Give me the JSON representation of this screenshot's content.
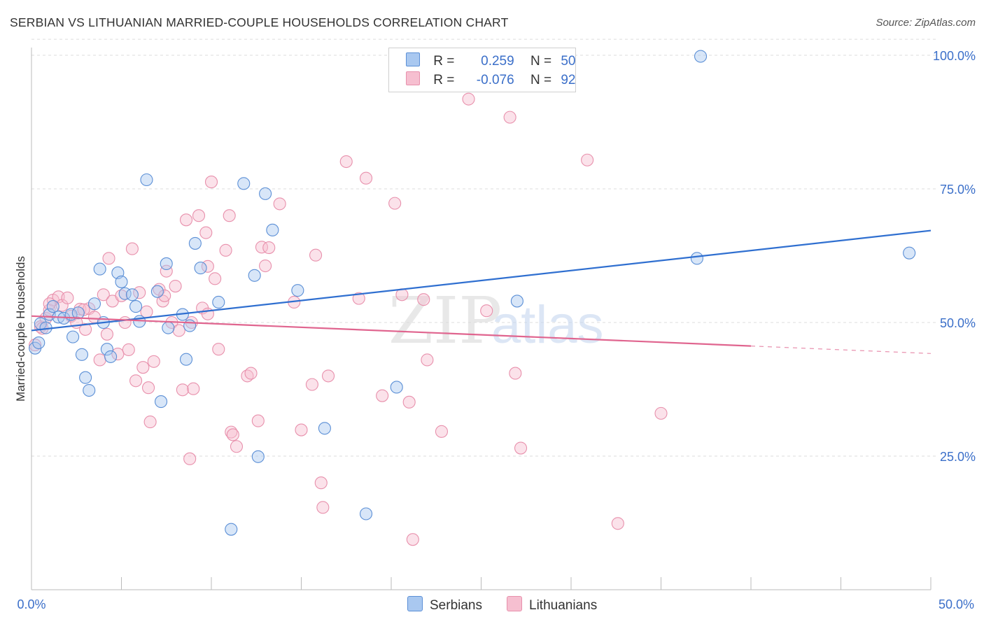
{
  "title": "SERBIAN VS LITHUANIAN MARRIED-COUPLE HOUSEHOLDS CORRELATION CHART",
  "source": "Source: ZipAtlas.com",
  "watermark": {
    "part1": "ZIP",
    "part2": "atlas"
  },
  "legend": {
    "rows": [
      {
        "r_label": "R =",
        "r_value": "0.259",
        "n_label": "N =",
        "n_value": "50"
      },
      {
        "r_label": "R =",
        "r_value": "-0.076",
        "n_label": "N =",
        "n_value": "92"
      }
    ]
  },
  "colors": {
    "serbians_fill": "#a9c8f0",
    "serbians_stroke": "#5b8fd6",
    "serbians_line": "#2f6fd0",
    "lithuanians_fill": "#f6bfd0",
    "lithuanians_stroke": "#e890ac",
    "lithuanians_line": "#e0658f",
    "axis_label": "#3b6fc9",
    "grid": "#dddddd"
  },
  "chart_data": {
    "type": "scatter",
    "title": "SERBIAN VS LITHUANIAN MARRIED-COUPLE HOUSEHOLDS CORRELATION CHART",
    "xlabel": "",
    "ylabel": "Married-couple Households",
    "xlim": [
      0,
      50
    ],
    "ylim": [
      0,
      103
    ],
    "x_tick_labels": [
      "0.0%",
      "50.0%"
    ],
    "y_ticks": [
      25,
      50,
      75,
      100
    ],
    "y_tick_labels": [
      "25.0%",
      "50.0%",
      "75.0%",
      "100.0%"
    ],
    "grid": true,
    "series": [
      {
        "name": "Serbians",
        "r": 0.259,
        "n": 50,
        "trend": {
          "x": [
            0,
            50
          ],
          "y": [
            48.5,
            67.2
          ],
          "dashed_from": null
        },
        "points": [
          [
            0.2,
            45.2
          ],
          [
            0.5,
            49.8
          ],
          [
            0.8,
            49.0
          ],
          [
            1.0,
            51.5
          ],
          [
            1.2,
            53.0
          ],
          [
            1.5,
            51.0
          ],
          [
            1.8,
            50.8
          ],
          [
            2.2,
            51.5
          ],
          [
            2.3,
            47.3
          ],
          [
            2.8,
            44.0
          ],
          [
            3.0,
            39.7
          ],
          [
            3.2,
            37.3
          ],
          [
            3.5,
            53.5
          ],
          [
            3.8,
            60.0
          ],
          [
            4.0,
            50.0
          ],
          [
            4.2,
            45.0
          ],
          [
            4.4,
            43.6
          ],
          [
            4.8,
            59.3
          ],
          [
            5.0,
            57.6
          ],
          [
            5.2,
            55.4
          ],
          [
            5.6,
            55.2
          ],
          [
            5.8,
            53.0
          ],
          [
            6.0,
            50.2
          ],
          [
            6.4,
            76.7
          ],
          [
            7.0,
            55.8
          ],
          [
            7.2,
            35.2
          ],
          [
            7.5,
            61.0
          ],
          [
            7.6,
            49.0
          ],
          [
            8.4,
            51.5
          ],
          [
            8.6,
            43.1
          ],
          [
            8.8,
            49.4
          ],
          [
            9.1,
            64.8
          ],
          [
            9.4,
            60.2
          ],
          [
            10.4,
            53.8
          ],
          [
            11.8,
            76.0
          ],
          [
            12.4,
            58.8
          ],
          [
            12.6,
            24.9
          ],
          [
            13.0,
            74.1
          ],
          [
            13.4,
            67.3
          ],
          [
            14.8,
            56.0
          ],
          [
            16.3,
            30.2
          ],
          [
            18.6,
            14.2
          ],
          [
            20.3,
            37.9
          ],
          [
            27.0,
            54.0
          ],
          [
            37.0,
            62.0
          ],
          [
            37.2,
            99.8
          ],
          [
            48.8,
            63.0
          ],
          [
            11.1,
            11.3
          ],
          [
            0.4,
            46.2
          ],
          [
            2.6,
            51.8
          ]
        ]
      },
      {
        "name": "Lithuanians",
        "r": -0.076,
        "n": 92,
        "trend": {
          "x": [
            0,
            50
          ],
          "y": [
            51.2,
            44.2
          ],
          "dashed_from": 40
        },
        "points": [
          [
            0.2,
            45.8
          ],
          [
            0.5,
            49.2
          ],
          [
            0.8,
            50.8
          ],
          [
            1.0,
            52.3
          ],
          [
            1.2,
            54.2
          ],
          [
            1.5,
            54.8
          ],
          [
            1.7,
            53.2
          ],
          [
            2.0,
            54.6
          ],
          [
            2.2,
            51.2
          ],
          [
            2.5,
            50.0
          ],
          [
            2.7,
            52.5
          ],
          [
            3.0,
            48.7
          ],
          [
            3.2,
            52.6
          ],
          [
            3.5,
            51.0
          ],
          [
            3.8,
            43.0
          ],
          [
            4.0,
            55.2
          ],
          [
            4.2,
            47.8
          ],
          [
            4.3,
            62.0
          ],
          [
            4.5,
            54.0
          ],
          [
            4.8,
            44.1
          ],
          [
            5.0,
            55.0
          ],
          [
            5.2,
            50.0
          ],
          [
            5.4,
            44.9
          ],
          [
            5.6,
            63.8
          ],
          [
            5.8,
            39.1
          ],
          [
            6.0,
            55.6
          ],
          [
            6.2,
            41.6
          ],
          [
            6.5,
            37.8
          ],
          [
            6.6,
            31.4
          ],
          [
            6.8,
            42.7
          ],
          [
            7.1,
            56.2
          ],
          [
            7.3,
            54.0
          ],
          [
            7.4,
            55.0
          ],
          [
            7.5,
            59.6
          ],
          [
            7.8,
            50.0
          ],
          [
            8.0,
            56.8
          ],
          [
            8.2,
            48.5
          ],
          [
            8.4,
            37.4
          ],
          [
            8.6,
            69.2
          ],
          [
            8.8,
            24.5
          ],
          [
            8.9,
            50.0
          ],
          [
            9.0,
            37.6
          ],
          [
            9.3,
            70.0
          ],
          [
            9.5,
            52.7
          ],
          [
            9.7,
            66.8
          ],
          [
            9.8,
            60.5
          ],
          [
            10.0,
            76.3
          ],
          [
            10.2,
            58.2
          ],
          [
            10.4,
            45.0
          ],
          [
            10.8,
            63.5
          ],
          [
            11.0,
            70.0
          ],
          [
            11.1,
            29.5
          ],
          [
            11.2,
            29.0
          ],
          [
            11.4,
            26.8
          ],
          [
            12.0,
            40.0
          ],
          [
            12.2,
            40.5
          ],
          [
            12.6,
            31.6
          ],
          [
            12.8,
            64.1
          ],
          [
            13.0,
            60.6
          ],
          [
            13.2,
            64.0
          ],
          [
            13.8,
            72.2
          ],
          [
            14.6,
            53.8
          ],
          [
            15.0,
            29.9
          ],
          [
            15.6,
            38.4
          ],
          [
            15.8,
            62.6
          ],
          [
            16.1,
            20.0
          ],
          [
            16.2,
            15.4
          ],
          [
            16.5,
            40.0
          ],
          [
            17.5,
            80.1
          ],
          [
            18.2,
            54.5
          ],
          [
            18.6,
            77.0
          ],
          [
            19.5,
            36.3
          ],
          [
            20.2,
            72.3
          ],
          [
            20.6,
            55.2
          ],
          [
            21.0,
            35.1
          ],
          [
            21.2,
            9.4
          ],
          [
            21.8,
            54.3
          ],
          [
            22.0,
            43.0
          ],
          [
            22.8,
            29.6
          ],
          [
            24.3,
            91.8
          ],
          [
            25.3,
            52.2
          ],
          [
            26.6,
            88.4
          ],
          [
            26.9,
            40.5
          ],
          [
            27.2,
            26.5
          ],
          [
            30.9,
            80.4
          ],
          [
            32.6,
            12.4
          ],
          [
            35.0,
            33.0
          ],
          [
            1.0,
            53.5
          ],
          [
            2.9,
            52.4
          ],
          [
            6.4,
            52.0
          ],
          [
            9.8,
            51.6
          ],
          [
            0.6,
            48.9
          ]
        ]
      }
    ]
  },
  "bottom_legend": [
    "Serbians",
    "Lithuanians"
  ],
  "axis": {
    "ylabel": "Married-couple Households",
    "x_min_label": "0.0%",
    "x_max_label": "50.0%"
  }
}
